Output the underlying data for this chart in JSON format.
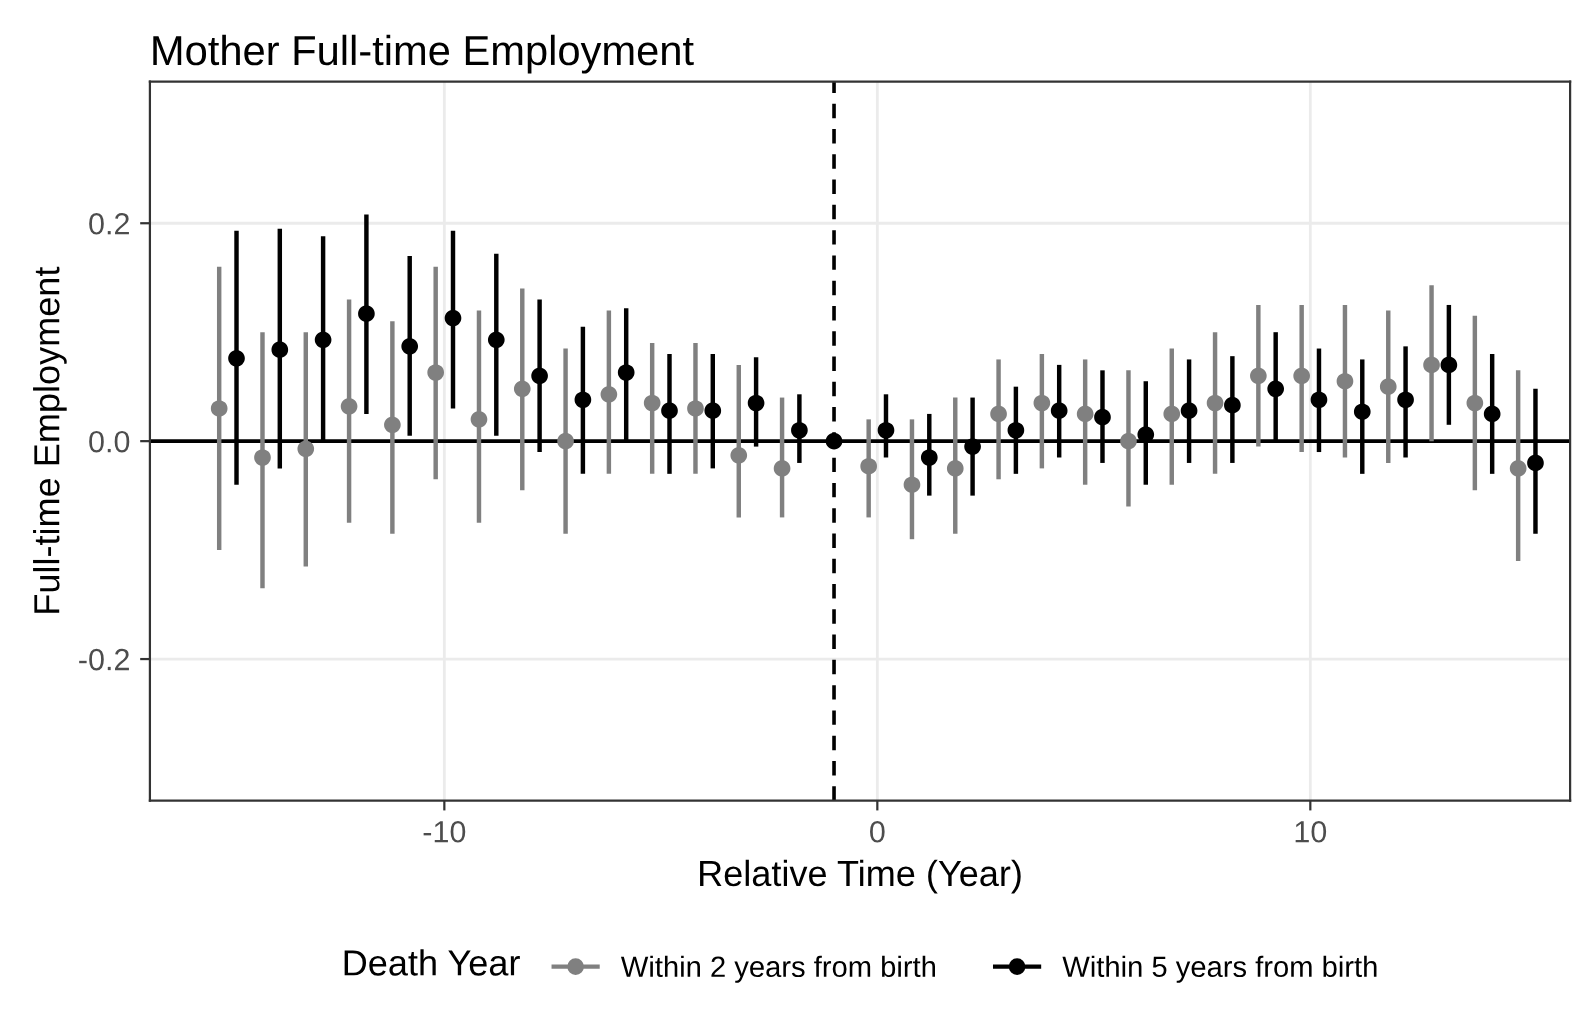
{
  "chart_data": {
    "type": "scatter",
    "title": "Mother Full-time Employment",
    "xlabel": "Relative Time (Year)",
    "ylabel": "Full-time Employment",
    "legend_title": "Death Year",
    "legend": "bottom",
    "grid": true,
    "marker": "circle",
    "xlim": [
      -16.8,
      16.0
    ],
    "xticks": [
      -10,
      0,
      10
    ],
    "ylim": [
      -0.33,
      0.33
    ],
    "yticks": [
      -0.2,
      {
        "value": 0,
        "label": "0.0"
      },
      0.2
    ],
    "ref_lines": [
      {
        "axis": "y",
        "value": 0,
        "color": "#000000",
        "line_style": "solid"
      },
      {
        "axis": "x",
        "value": -1,
        "color": "#000000",
        "line_style": "dashed"
      }
    ],
    "series": [
      {
        "name": "Within 2 years from birth",
        "color": "#808080",
        "x": [
          -15.2,
          -14.2,
          -13.2,
          -12.2,
          -11.2,
          -10.2,
          -9.2,
          -8.2,
          -7.2,
          -6.2,
          -5.2,
          -4.2,
          -3.2,
          -2.2,
          -1.2,
          -0.2,
          0.8,
          1.8,
          2.8,
          3.8,
          4.8,
          5.8,
          6.8,
          7.8,
          8.8,
          9.8,
          10.8,
          11.8,
          12.8,
          13.8,
          14.8
        ],
        "values": [
          0.03,
          -0.015,
          -0.007,
          0.032,
          0.015,
          0.063,
          0.02,
          0.048,
          0.0,
          0.043,
          0.035,
          0.03,
          -0.013,
          -0.025,
          null,
          -0.023,
          -0.04,
          -0.025,
          0.025,
          0.035,
          0.025,
          0.0,
          0.025,
          0.035,
          0.06,
          0.06,
          0.055,
          0.05,
          0.07,
          0.035,
          -0.025
        ],
        "errors": [
          [
            -0.1,
            0.16
          ],
          [
            -0.135,
            0.1
          ],
          [
            -0.115,
            0.1
          ],
          [
            -0.075,
            0.13
          ],
          [
            -0.085,
            0.11
          ],
          [
            -0.035,
            0.16
          ],
          [
            -0.075,
            0.12
          ],
          [
            -0.045,
            0.14
          ],
          [
            -0.085,
            0.085
          ],
          [
            -0.03,
            0.12
          ],
          [
            -0.03,
            0.09
          ],
          [
            -0.03,
            0.09
          ],
          [
            -0.07,
            0.07
          ],
          [
            -0.07,
            0.04
          ],
          null,
          [
            -0.07,
            0.02
          ],
          [
            -0.09,
            0.02
          ],
          [
            -0.085,
            0.04
          ],
          [
            -0.035,
            0.075
          ],
          [
            -0.025,
            0.08
          ],
          [
            -0.04,
            0.075
          ],
          [
            -0.06,
            0.065
          ],
          [
            -0.04,
            0.085
          ],
          [
            -0.03,
            0.1
          ],
          [
            -0.005,
            0.125
          ],
          [
            -0.01,
            0.125
          ],
          [
            -0.015,
            0.125
          ],
          [
            -0.02,
            0.12
          ],
          [
            0.0,
            0.143
          ],
          [
            -0.045,
            0.115
          ],
          [
            -0.11,
            0.065
          ]
        ]
      },
      {
        "name": "Within 5 years from birth",
        "color": "#000000",
        "x": [
          -14.8,
          -13.8,
          -12.8,
          -11.8,
          -10.8,
          -9.8,
          -8.8,
          -7.8,
          -6.8,
          -5.8,
          -4.8,
          -3.8,
          -2.8,
          -1.8,
          -1.0,
          0.2,
          1.2,
          2.2,
          3.2,
          4.2,
          5.2,
          6.2,
          7.2,
          8.2,
          9.2,
          10.2,
          11.2,
          12.2,
          13.2,
          14.2,
          15.2
        ],
        "values": [
          0.076,
          0.084,
          0.093,
          0.117,
          0.087,
          0.113,
          0.093,
          0.06,
          0.038,
          0.063,
          0.028,
          0.028,
          0.035,
          0.01,
          0.0,
          0.01,
          -0.015,
          -0.005,
          0.01,
          0.028,
          0.022,
          0.006,
          0.028,
          0.033,
          0.048,
          0.038,
          0.027,
          0.038,
          0.07,
          0.025,
          -0.02
        ],
        "errors": [
          [
            -0.04,
            0.193
          ],
          [
            -0.025,
            0.195
          ],
          [
            0.0,
            0.188
          ],
          [
            0.025,
            0.208
          ],
          [
            0.005,
            0.17
          ],
          [
            0.03,
            0.193
          ],
          [
            0.005,
            0.172
          ],
          [
            -0.01,
            0.13
          ],
          [
            -0.03,
            0.105
          ],
          [
            0.0,
            0.122
          ],
          [
            -0.03,
            0.08
          ],
          [
            -0.025,
            0.08
          ],
          [
            -0.005,
            0.077
          ],
          [
            -0.02,
            0.043
          ],
          null,
          [
            -0.015,
            0.043
          ],
          [
            -0.05,
            0.025
          ],
          [
            -0.05,
            0.04
          ],
          [
            -0.03,
            0.05
          ],
          [
            -0.015,
            0.07
          ],
          [
            -0.02,
            0.065
          ],
          [
            -0.04,
            0.055
          ],
          [
            -0.02,
            0.075
          ],
          [
            -0.02,
            0.078
          ],
          [
            0.0,
            0.1
          ],
          [
            -0.01,
            0.085
          ],
          [
            -0.03,
            0.075
          ],
          [
            -0.015,
            0.087
          ],
          [
            0.015,
            0.125
          ],
          [
            -0.03,
            0.08
          ],
          [
            -0.085,
            0.048
          ]
        ]
      }
    ]
  }
}
